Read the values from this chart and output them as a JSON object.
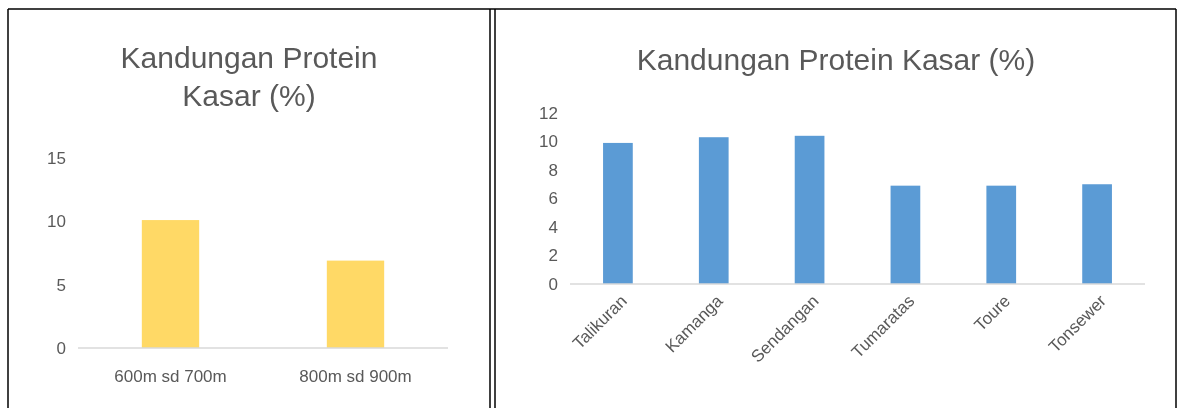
{
  "chart_data": [
    {
      "type": "bar",
      "title": "Kandungan Protein Kasar (%)",
      "categories": [
        "600m sd 700m",
        "800m sd 900m"
      ],
      "values": [
        10.1,
        6.9
      ],
      "color": "#ffd966",
      "ylim": [
        0,
        15
      ],
      "yticks": [
        0,
        5,
        10,
        15
      ],
      "grid": false
    },
    {
      "type": "bar",
      "title": "Kandungan Protein Kasar (%)",
      "categories": [
        "Talikuran",
        "Kamanga",
        "Sendangan",
        "Tumaratas",
        "Toure",
        "Tonsewer"
      ],
      "values": [
        9.9,
        10.3,
        10.4,
        6.9,
        6.9,
        7.0
      ],
      "color": "#5b9bd5",
      "ylim": [
        0,
        12
      ],
      "yticks": [
        0,
        2,
        4,
        6,
        8,
        10,
        12
      ],
      "grid": false
    }
  ]
}
